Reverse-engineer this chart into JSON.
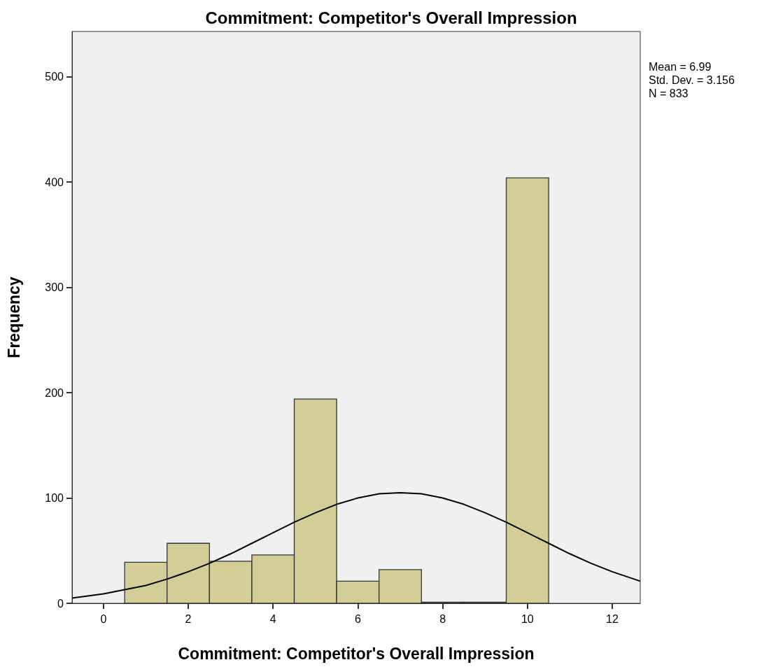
{
  "chart_data": {
    "type": "histogram",
    "title": "Commitment: Competitor's Overall Impression",
    "xlabel": "Commitment: Competitor's Overall Impression",
    "ylabel": "Frequency",
    "bins": [
      0.5,
      1.5,
      2.5,
      3.5,
      4.5,
      5.5,
      6.5,
      7.5,
      8.5,
      9.5,
      10.5
    ],
    "values": [
      39,
      57,
      40,
      46,
      194,
      21,
      32,
      1,
      1,
      404
    ],
    "color": "#d3ce97",
    "series": [
      {
        "type": "line",
        "color": "#000000",
        "marker": "none",
        "x": [
          -0.74,
          0,
          0.5,
          1,
          1.5,
          2,
          2.5,
          3,
          3.5,
          4,
          4.5,
          5,
          5.5,
          6,
          6.5,
          7,
          7.5,
          8,
          8.5,
          9,
          9.5,
          10,
          10.5,
          11,
          11.5,
          12,
          12.66
        ],
        "values": [
          5,
          9,
          13,
          17,
          23,
          30,
          38,
          47,
          57,
          67,
          77,
          86,
          94,
          100,
          104,
          105,
          104,
          100,
          94,
          86,
          77,
          67,
          57,
          47,
          38,
          30,
          21
        ]
      }
    ],
    "xlim": [
      -0.74,
      12.66
    ],
    "ylim": [
      0,
      543
    ],
    "xticks": [
      0,
      2,
      4,
      6,
      8,
      10,
      12
    ],
    "yticks": [
      0,
      100,
      200,
      300,
      400,
      500
    ],
    "grid": false,
    "legend": false,
    "annotations": [
      "Mean = 6.99",
      "Std. Dev. = 3.156",
      "N = 833"
    ]
  }
}
